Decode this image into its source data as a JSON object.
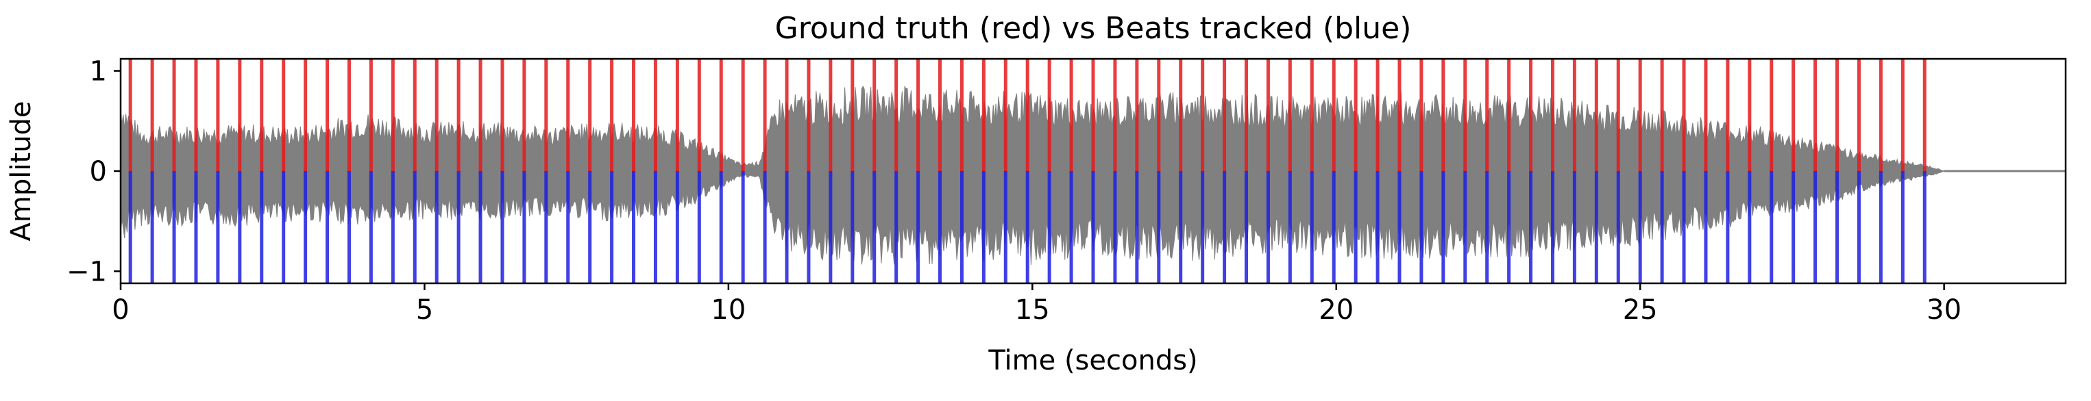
{
  "chart_data": {
    "type": "line",
    "title": "Ground truth (red) vs Beats tracked (blue)",
    "xlabel": "Time (seconds)",
    "ylabel": "Amplitude",
    "xlim": [
      0,
      32
    ],
    "ylim": [
      -1.12,
      1.12
    ],
    "x_ticks": [
      0,
      5,
      10,
      15,
      20,
      25,
      30
    ],
    "y_ticks": [
      -1,
      0,
      1
    ],
    "grid": false,
    "legend": "none",
    "series": [
      {
        "kind": "waveform",
        "color": "#808080",
        "duration": 30.0,
        "envelope": [
          {
            "t": 0.0,
            "top": 0.8,
            "bottom": -0.75
          },
          {
            "t": 0.3,
            "top": 0.45,
            "bottom": -0.55
          },
          {
            "t": 2.0,
            "top": 0.48,
            "bottom": -0.55
          },
          {
            "t": 3.0,
            "top": 0.45,
            "bottom": -0.5
          },
          {
            "t": 4.0,
            "top": 0.6,
            "bottom": -0.55
          },
          {
            "t": 5.0,
            "top": 0.5,
            "bottom": -0.48
          },
          {
            "t": 6.0,
            "top": 0.5,
            "bottom": -0.5
          },
          {
            "t": 7.0,
            "top": 0.45,
            "bottom": -0.45
          },
          {
            "t": 8.0,
            "top": 0.5,
            "bottom": -0.5
          },
          {
            "t": 9.0,
            "top": 0.45,
            "bottom": -0.45
          },
          {
            "t": 9.5,
            "top": 0.32,
            "bottom": -0.32
          },
          {
            "t": 10.2,
            "top": 0.08,
            "bottom": -0.06
          },
          {
            "t": 10.5,
            "top": 0.1,
            "bottom": -0.08
          },
          {
            "t": 10.8,
            "top": 0.75,
            "bottom": -0.8
          },
          {
            "t": 12.0,
            "top": 0.85,
            "bottom": -0.95
          },
          {
            "t": 13.0,
            "top": 0.85,
            "bottom": -0.95
          },
          {
            "t": 14.0,
            "top": 0.8,
            "bottom": -0.9
          },
          {
            "t": 15.0,
            "top": 0.8,
            "bottom": -0.95
          },
          {
            "t": 16.0,
            "top": 0.72,
            "bottom": -0.85
          },
          {
            "t": 17.0,
            "top": 0.8,
            "bottom": -0.9
          },
          {
            "t": 18.0,
            "top": 0.8,
            "bottom": -0.9
          },
          {
            "t": 19.0,
            "top": 0.75,
            "bottom": -0.85
          },
          {
            "t": 20.0,
            "top": 0.75,
            "bottom": -0.85
          },
          {
            "t": 21.0,
            "top": 0.8,
            "bottom": -0.9
          },
          {
            "t": 22.0,
            "top": 0.75,
            "bottom": -0.85
          },
          {
            "t": 23.0,
            "top": 0.78,
            "bottom": -0.88
          },
          {
            "t": 24.0,
            "top": 0.72,
            "bottom": -0.8
          },
          {
            "t": 25.0,
            "top": 0.65,
            "bottom": -0.75
          },
          {
            "t": 26.0,
            "top": 0.55,
            "bottom": -0.62
          },
          {
            "t": 27.0,
            "top": 0.45,
            "bottom": -0.5
          },
          {
            "t": 28.0,
            "top": 0.3,
            "bottom": -0.35
          },
          {
            "t": 29.0,
            "top": 0.15,
            "bottom": -0.15
          },
          {
            "t": 29.8,
            "top": 0.05,
            "bottom": -0.05
          },
          {
            "t": 30.0,
            "top": 0.0,
            "bottom": 0.0
          }
        ],
        "flat_to": 32
      },
      {
        "kind": "beats",
        "label": "Ground truth",
        "color": "#e41a1c",
        "y_range": [
          0,
          1.12
        ],
        "times": [
          0.16,
          0.52,
          0.88,
          1.24,
          1.6,
          1.96,
          2.32,
          2.68,
          3.04,
          3.4,
          3.76,
          4.12,
          4.48,
          4.84,
          5.2,
          5.56,
          5.92,
          6.28,
          6.64,
          7.0,
          7.36,
          7.72,
          8.08,
          8.44,
          8.8,
          9.16,
          9.52,
          9.88,
          10.24,
          10.6,
          10.96,
          11.32,
          11.68,
          12.04,
          12.4,
          12.76,
          13.12,
          13.48,
          13.84,
          14.2,
          14.56,
          14.92,
          15.28,
          15.64,
          16.0,
          16.36,
          16.72,
          17.08,
          17.44,
          17.8,
          18.16,
          18.52,
          18.88,
          19.24,
          19.6,
          19.96,
          20.32,
          20.68,
          21.04,
          21.4,
          21.76,
          22.12,
          22.48,
          22.84,
          23.2,
          23.56,
          23.92,
          24.28,
          24.64,
          25.0,
          25.36,
          25.72,
          26.08,
          26.44,
          26.8,
          27.16,
          27.52,
          27.88,
          28.24,
          28.6,
          28.96,
          29.32,
          29.68
        ]
      },
      {
        "kind": "beats",
        "label": "Beats tracked",
        "color": "#1f1fe0",
        "y_range": [
          -1.12,
          0
        ],
        "times": [
          0.16,
          0.52,
          0.88,
          1.24,
          1.6,
          1.96,
          2.32,
          2.68,
          3.04,
          3.4,
          3.76,
          4.12,
          4.48,
          4.84,
          5.2,
          5.56,
          5.92,
          6.28,
          6.64,
          7.0,
          7.36,
          7.72,
          8.08,
          8.44,
          8.8,
          9.16,
          9.52,
          9.88,
          10.24,
          10.6,
          10.96,
          11.32,
          11.68,
          12.04,
          12.4,
          12.76,
          13.12,
          13.48,
          13.84,
          14.2,
          14.56,
          14.92,
          15.28,
          15.64,
          16.0,
          16.36,
          16.72,
          17.08,
          17.44,
          17.8,
          18.16,
          18.52,
          18.88,
          19.24,
          19.6,
          19.96,
          20.32,
          20.68,
          21.04,
          21.4,
          21.76,
          22.12,
          22.48,
          22.84,
          23.2,
          23.56,
          23.92,
          24.28,
          24.64,
          25.0,
          25.36,
          25.72,
          26.08,
          26.44,
          26.8,
          27.16,
          27.52,
          27.88,
          28.24,
          28.6,
          28.96,
          29.32,
          29.68
        ]
      }
    ]
  }
}
